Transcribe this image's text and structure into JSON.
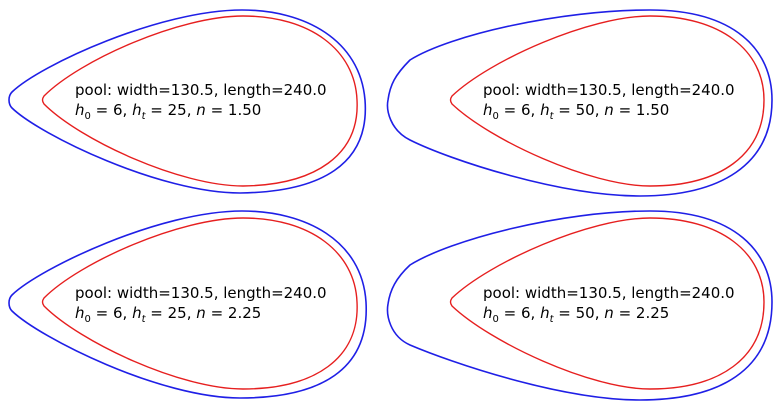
{
  "colors": {
    "outer_curve": "#1f1fe6",
    "inner_curve": "#e61f1f",
    "background": "#ffffff"
  },
  "panels": [
    {
      "pool_line": "pool: width=130.5, length=240.0",
      "h0_value": "6",
      "ht_value": "25",
      "n_value": "1.50"
    },
    {
      "pool_line": "pool: width=130.5, length=240.0",
      "h0_value": "6",
      "ht_value": "50",
      "n_value": "1.50"
    },
    {
      "pool_line": "pool: width=130.5, length=240.0",
      "h0_value": "6",
      "ht_value": "25",
      "n_value": "2.25"
    },
    {
      "pool_line": "pool: width=130.5, length=240.0",
      "h0_value": "6",
      "ht_value": "50",
      "n_value": "2.25"
    }
  ]
}
